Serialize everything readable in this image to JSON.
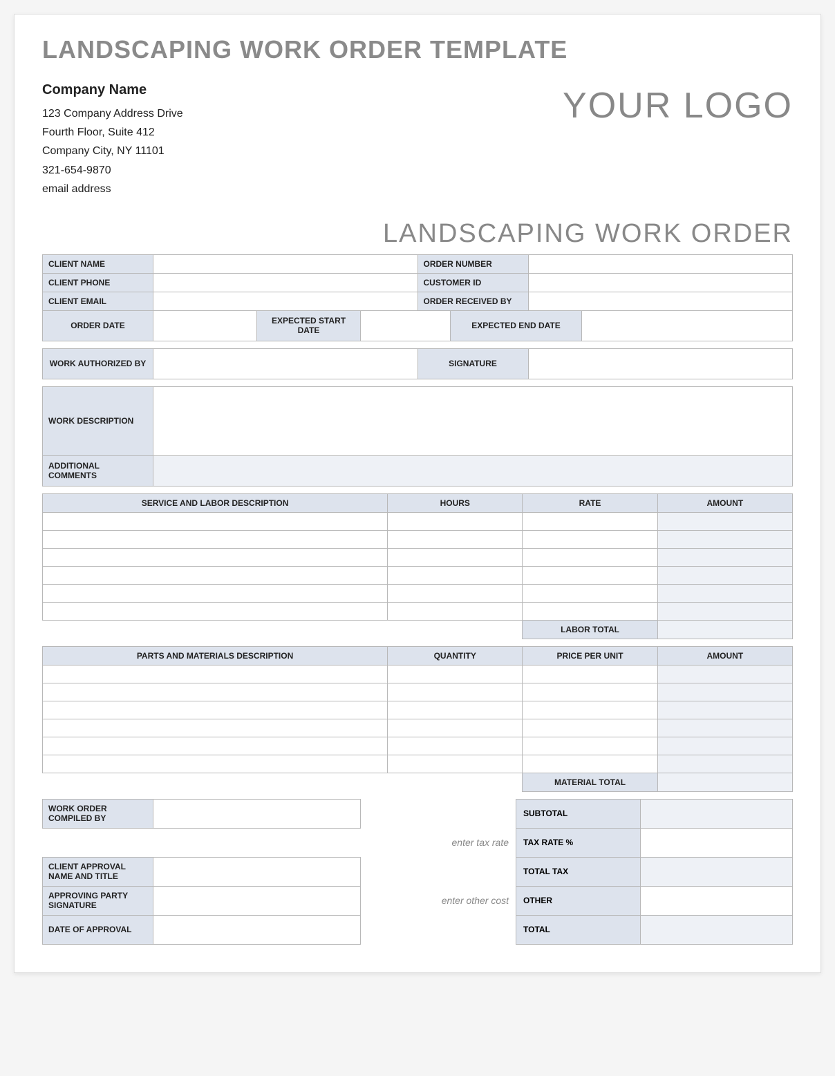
{
  "doc_title": "LANDSCAPING WORK ORDER TEMPLATE",
  "company": {
    "name": "Company Name",
    "address1": "123 Company Address Drive",
    "address2": "Fourth Floor, Suite 412",
    "city_line": "Company City, NY  11101",
    "phone": "321-654-9870",
    "email": "email address"
  },
  "logo_text": "YOUR LOGO",
  "section_title": "LANDSCAPING WORK ORDER",
  "labels": {
    "client_name": "CLIENT NAME",
    "client_phone": "CLIENT PHONE",
    "client_email": "CLIENT EMAIL",
    "order_number": "ORDER NUMBER",
    "customer_id": "CUSTOMER ID",
    "order_received_by": "ORDER RECEIVED BY",
    "order_date": "ORDER DATE",
    "expected_start": "EXPECTED START DATE",
    "expected_end": "EXPECTED END DATE",
    "work_auth_by": "WORK AUTHORIZED BY",
    "signature": "SIGNATURE",
    "work_description": "WORK DESCRIPTION",
    "additional_comments": "ADDITIONAL COMMENTS"
  },
  "service_table": {
    "headers": {
      "desc": "SERVICE AND LABOR DESCRIPTION",
      "hours": "HOURS",
      "rate": "RATE",
      "amount": "AMOUNT"
    },
    "row_count": 6,
    "total_label": "LABOR TOTAL"
  },
  "parts_table": {
    "headers": {
      "desc": "PARTS AND MATERIALS DESCRIPTION",
      "qty": "QUANTITY",
      "price": "PRICE PER UNIT",
      "amount": "AMOUNT"
    },
    "row_count": 6,
    "total_label": "MATERIAL TOTAL"
  },
  "bottom": {
    "compiled_by": "WORK ORDER COMPILED BY",
    "client_approval": "CLIENT APPROVAL NAME AND TITLE",
    "approving_sig": "APPROVING PARTY SIGNATURE",
    "date_approval": "DATE OF APPROVAL",
    "hint_tax": "enter tax rate",
    "hint_other": "enter other cost",
    "subtotal": "SUBTOTAL",
    "tax_rate": "TAX RATE %",
    "total_tax": "TOTAL TAX",
    "other": "OTHER",
    "total": "TOTAL"
  },
  "style": {
    "label_bg": "#dde3ed",
    "shade_bg": "#eef1f6",
    "border_color": "#b8b8b8",
    "title_color": "#8a8a8a",
    "logo_color": "#888888"
  }
}
